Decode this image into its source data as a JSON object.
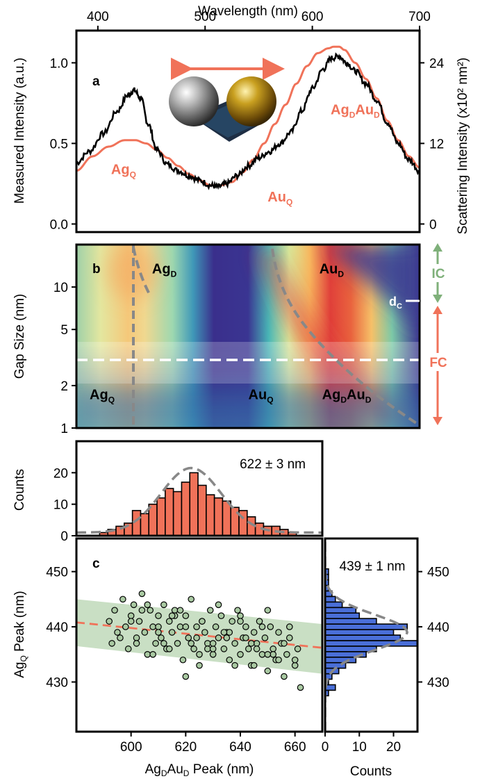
{
  "chart_data": [
    {
      "panel": "a",
      "type": "line",
      "panel_label": "a",
      "xlabel": "Wavelength (nm)",
      "ylabel": "Measured Intensity (a.u.)",
      "ylabel_right": "Scattering Intensity (x10² nm²)",
      "xlim": [
        380,
        700
      ],
      "ylim": [
        -0.05,
        1.2
      ],
      "x_ticks": [
        400,
        500,
        600,
        700
      ],
      "y_ticks": [
        0.0,
        0.5,
        1.0
      ],
      "y_tick_labels": [
        "0.0",
        "0.5",
        "1.0"
      ],
      "y2_ticks": [
        0,
        12,
        24
      ],
      "y2_per_y1": 24,
      "annotations": [
        {
          "base": "Ag",
          "sub": "Q",
          "x": 424,
          "y": 0.31,
          "color": "#f07259"
        },
        {
          "base": "Au",
          "sub": "Q",
          "x": 570,
          "y": 0.14,
          "color": "#f07259"
        },
        {
          "base": "Ag",
          "sub": "D",
          "base2": "Au",
          "sub2": "D",
          "x": 640,
          "y": 0.68,
          "color": "#f07259"
        }
      ],
      "series": [
        {
          "role": "measured",
          "color": "#000000",
          "x": [
            380,
            392,
            405,
            418,
            428,
            434,
            440,
            447,
            455,
            465,
            475,
            485,
            495,
            505,
            512,
            520,
            530,
            540,
            550,
            560,
            570,
            580,
            590,
            600,
            610,
            618,
            625,
            632,
            640,
            650,
            660,
            670,
            680,
            690,
            700
          ],
          "y": [
            0.38,
            0.45,
            0.56,
            0.7,
            0.8,
            0.83,
            0.78,
            0.62,
            0.46,
            0.37,
            0.33,
            0.3,
            0.27,
            0.24,
            0.23,
            0.25,
            0.3,
            0.36,
            0.41,
            0.45,
            0.5,
            0.57,
            0.7,
            0.84,
            0.96,
            1.03,
            1.04,
            1.0,
            0.95,
            0.87,
            0.77,
            0.63,
            0.5,
            0.4,
            0.33
          ]
        },
        {
          "role": "simulated",
          "color": "#f07259",
          "x": [
            380,
            395,
            410,
            425,
            435,
            445,
            455,
            465,
            475,
            485,
            495,
            505,
            515,
            525,
            535,
            545,
            555,
            565,
            575,
            585,
            595,
            605,
            615,
            620,
            625,
            630,
            640,
            650,
            660,
            670,
            680,
            690,
            700
          ],
          "y": [
            0.33,
            0.42,
            0.48,
            0.52,
            0.52,
            0.5,
            0.46,
            0.41,
            0.36,
            0.31,
            0.27,
            0.24,
            0.24,
            0.26,
            0.32,
            0.4,
            0.5,
            0.62,
            0.74,
            0.87,
            0.98,
            1.06,
            1.09,
            1.1,
            1.1,
            1.08,
            1.0,
            0.9,
            0.78,
            0.64,
            0.52,
            0.42,
            0.35
          ]
        }
      ]
    },
    {
      "panel": "b",
      "type": "heatmap",
      "panel_label": "b",
      "ylabel": "Gap Size (nm)",
      "xlim": [
        380,
        700
      ],
      "y_scale": "log",
      "ylim": [
        1,
        20
      ],
      "y_ticks": [
        1,
        2,
        5,
        10
      ],
      "colormap": [
        "#3b2f8f",
        "#3aa8b8",
        "#d8e8a0",
        "#f5b860",
        "#d8303a"
      ],
      "reference_lines": [
        {
          "name": "dashed_horizontal",
          "y": 3,
          "color": "#ffffff"
        },
        {
          "name": "dashed_vertical",
          "x": 435,
          "color": "#888888"
        },
        {
          "name": "dashed_curve_AgD",
          "color": "#888888"
        },
        {
          "name": "dashed_curve_AgDAuD",
          "color": "#888888"
        }
      ],
      "labels": [
        {
          "base": "Ag",
          "sub": "D",
          "x": 462,
          "y": 12.5
        },
        {
          "base": "Au",
          "sub": "D",
          "x": 618,
          "y": 12.5
        },
        {
          "base": "Ag",
          "sub": "Q",
          "x": 404,
          "y": 1.6
        },
        {
          "base": "Au",
          "sub": "Q",
          "x": 552,
          "y": 1.6
        },
        {
          "base": "Ag",
          "sub": "D",
          "base2": "Au",
          "sub2": "D",
          "x": 632,
          "y": 1.6
        }
      ],
      "side_annotations": [
        {
          "text": "IC",
          "color": "#7fb07a"
        },
        {
          "base": "d",
          "sub": "C",
          "color": "#ffffff"
        },
        {
          "text": "FC",
          "color": "#f07259"
        }
      ]
    },
    {
      "panel": "c-top-histogram",
      "type": "bar",
      "ylabel": "Counts",
      "annotation": "622 ± 3 nm",
      "xlim": [
        580,
        670
      ],
      "ylim": [
        0,
        30
      ],
      "y_ticks": [
        0,
        10,
        20
      ],
      "bin_width": 3,
      "bins": [
        590,
        593,
        596,
        599,
        602,
        605,
        608,
        611,
        614,
        617,
        620,
        623,
        626,
        629,
        632,
        635,
        638,
        641,
        644,
        647,
        650,
        653,
        656,
        659
      ],
      "counts": [
        1,
        2,
        3,
        4,
        8,
        7,
        10,
        12,
        15,
        14,
        17,
        20,
        16,
        13,
        12,
        11,
        9,
        8,
        6,
        4,
        3,
        3,
        2,
        1
      ],
      "fit_mean": 622,
      "fit_sigma": 11,
      "fit_peak": 20.5,
      "bar_color": "#f07259"
    },
    {
      "panel": "c",
      "type": "scatter",
      "panel_label": "c",
      "xlabel_base": "Ag",
      "xlabel_sub": "D",
      "xlabel_base2": "Au",
      "xlabel_sub2": "D",
      "xlabel_rest": " Peak (nm)",
      "ylabel_base": "Ag",
      "ylabel_sub": "Q",
      "ylabel_rest": " Peak (nm)",
      "xlim": [
        580,
        670
      ],
      "ylim": [
        421,
        456
      ],
      "x_ticks": [
        600,
        620,
        640,
        660
      ],
      "y_ticks": [
        430,
        440,
        450
      ],
      "trend": {
        "x": [
          580,
          670
        ],
        "y": [
          440.8,
          436.2
        ],
        "color": "#f07259"
      },
      "band": {
        "upper": [
          445.0,
          440.5
        ],
        "lower": [
          436.5,
          431.5
        ],
        "color": "#c9dfc4"
      },
      "points_x": [
        592,
        593,
        594,
        595,
        597,
        598,
        599,
        600,
        601,
        602,
        603,
        604,
        605,
        606,
        607,
        608,
        609,
        610,
        611,
        612,
        613,
        614,
        615,
        616,
        617,
        618,
        619,
        620,
        621,
        622,
        623,
        624,
        625,
        626,
        627,
        628,
        629,
        630,
        631,
        632,
        633,
        634,
        635,
        636,
        637,
        638,
        639,
        640,
        641,
        642,
        643,
        644,
        645,
        646,
        647,
        648,
        649,
        650,
        651,
        652,
        653,
        654,
        655,
        656,
        657,
        658,
        660,
        661,
        662,
        596,
        600,
        604,
        608,
        612,
        616,
        620,
        624,
        628,
        632,
        636,
        640,
        644,
        648,
        652,
        656,
        660,
        602,
        606,
        610,
        614,
        618,
        622,
        626,
        630,
        634,
        638,
        642,
        646,
        650,
        654,
        658,
        610,
        620,
        630,
        640,
        650,
        615,
        625,
        635,
        645
      ],
      "points_y": [
        441,
        437,
        443,
        439,
        445,
        440,
        436,
        442,
        444,
        438,
        441,
        446,
        439,
        435,
        443,
        440,
        437,
        442,
        438,
        444,
        436,
        441,
        439,
        443,
        437,
        440,
        434,
        442,
        438,
        445,
        436,
        440,
        433,
        441,
        439,
        437,
        443,
        435,
        440,
        438,
        442,
        436,
        439,
        434,
        441,
        437,
        443,
        435,
        438,
        440,
        436,
        433,
        439,
        437,
        441,
        435,
        438,
        432,
        440,
        436,
        434,
        439,
        437,
        431,
        435,
        438,
        433,
        436,
        429,
        438,
        441,
        443,
        435,
        437,
        442,
        440,
        438,
        436,
        444,
        439,
        442,
        437,
        440,
        435,
        437,
        434,
        437,
        444,
        440,
        436,
        443,
        437,
        441,
        436,
        439,
        433,
        438,
        436,
        443,
        434,
        440,
        439,
        431,
        437,
        441,
        435,
        442,
        435,
        438,
        433
      ],
      "point_color": "#a9c9a2"
    },
    {
      "panel": "c-right-histogram",
      "type": "bar",
      "orientation": "horizontal",
      "xlabel": "Counts",
      "annotation": "439 ± 1 nm",
      "xlim": [
        0,
        27
      ],
      "x_ticks": [
        0,
        10,
        20
      ],
      "y_ticks_right": [
        430,
        440,
        450
      ],
      "bin_width": 1,
      "bins": [
        428,
        429,
        430,
        431,
        432,
        433,
        434,
        435,
        436,
        437,
        438,
        439,
        440,
        441,
        442,
        443,
        444,
        445,
        446,
        447,
        448,
        449,
        450
      ],
      "counts": [
        1,
        3,
        1,
        2,
        4,
        6,
        9,
        12,
        15,
        27,
        22,
        20,
        24,
        15,
        10,
        9,
        5,
        3,
        2,
        1,
        1,
        1,
        1
      ],
      "fit_mean": 439,
      "fit_sigma": 3.2,
      "fit_peak": 24,
      "bar_color": "#4a6fd8"
    }
  ]
}
